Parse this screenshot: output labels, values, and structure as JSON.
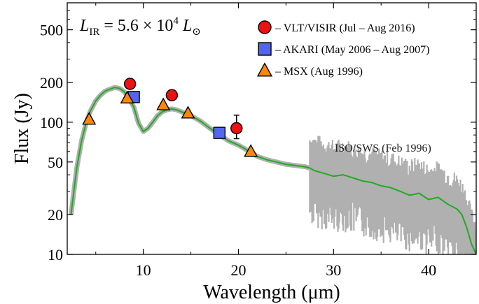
{
  "chart_data": {
    "type": "line",
    "xlabel": "Wavelength (μm)",
    "ylabel": "Flux (Jy)",
    "xlim": [
      2,
      45
    ],
    "ylim": [
      10,
      800
    ],
    "yscale": "log",
    "x_ticks": [
      10,
      20,
      30,
      40
    ],
    "y_ticks": [
      10,
      20,
      50,
      100,
      200,
      500
    ],
    "annotation": {
      "prefix": "L",
      "prefix_sub": "IR",
      "equals": " = 5.6 × 10",
      "exp": "4",
      "suffix": " L",
      "suffix_sub": "⊙"
    },
    "spectrum": {
      "name": "ISO/SWS (Feb 1996)",
      "color": "#22aa22",
      "noise_color": "#b0b0b0",
      "x": [
        2.4,
        3.0,
        3.5,
        4.0,
        4.4,
        5.0,
        5.5,
        6.0,
        6.5,
        7.0,
        7.5,
        8.0,
        8.5,
        9.0,
        9.5,
        10.0,
        10.5,
        11.0,
        11.5,
        12.0,
        12.5,
        13.0,
        13.5,
        14.0,
        15.0,
        16.0,
        17.0,
        18.0,
        19.0,
        20.0,
        21.0,
        22.0,
        23.0,
        24.0,
        25.0,
        26.0,
        27.0,
        27.5,
        28.0,
        29.0,
        30.0,
        31.0,
        32.0,
        33.0,
        34.0,
        35.0,
        36.0,
        37.0,
        38.0,
        39.0,
        40.0,
        41.0,
        42.0,
        43.0,
        43.5,
        44.0,
        44.5,
        45.0
      ],
      "y": [
        20,
        45,
        72,
        100,
        120,
        145,
        160,
        172,
        178,
        183,
        180,
        170,
        150,
        130,
        98,
        85,
        90,
        100,
        112,
        120,
        124,
        126,
        124,
        120,
        112,
        102,
        90,
        80,
        72,
        67,
        61,
        55,
        52,
        50,
        48,
        47,
        46,
        45,
        43,
        41,
        39,
        40,
        38,
        36,
        35,
        33,
        32,
        30,
        28,
        29,
        26,
        27,
        24,
        22,
        20,
        16,
        12,
        10
      ],
      "noise_from_x": 27.5
    },
    "points": [
      {
        "name": "VLT/VISIR (Jul – Aug 2016)",
        "marker": "circle",
        "color": "#ee1111",
        "x": [
          8.6,
          13.0,
          19.8
        ],
        "y": [
          195,
          160,
          90
        ],
        "yerr_hi": [
          210,
          175,
          113
        ],
        "yerr_lo": [
          180,
          147,
          75
        ]
      },
      {
        "name": "AKARI (May 2006 – Aug 2007)",
        "marker": "square",
        "color": "#5566ee",
        "x": [
          9.0,
          18.0
        ],
        "y": [
          155,
          83
        ]
      },
      {
        "name": "MSX (Aug 1996)",
        "marker": "triangle",
        "color": "#ff8800",
        "x": [
          4.3,
          8.3,
          12.1,
          14.7,
          21.3
        ],
        "y": [
          105,
          152,
          135,
          117,
          60
        ]
      }
    ],
    "legend_position": "top-right",
    "grid": false
  }
}
